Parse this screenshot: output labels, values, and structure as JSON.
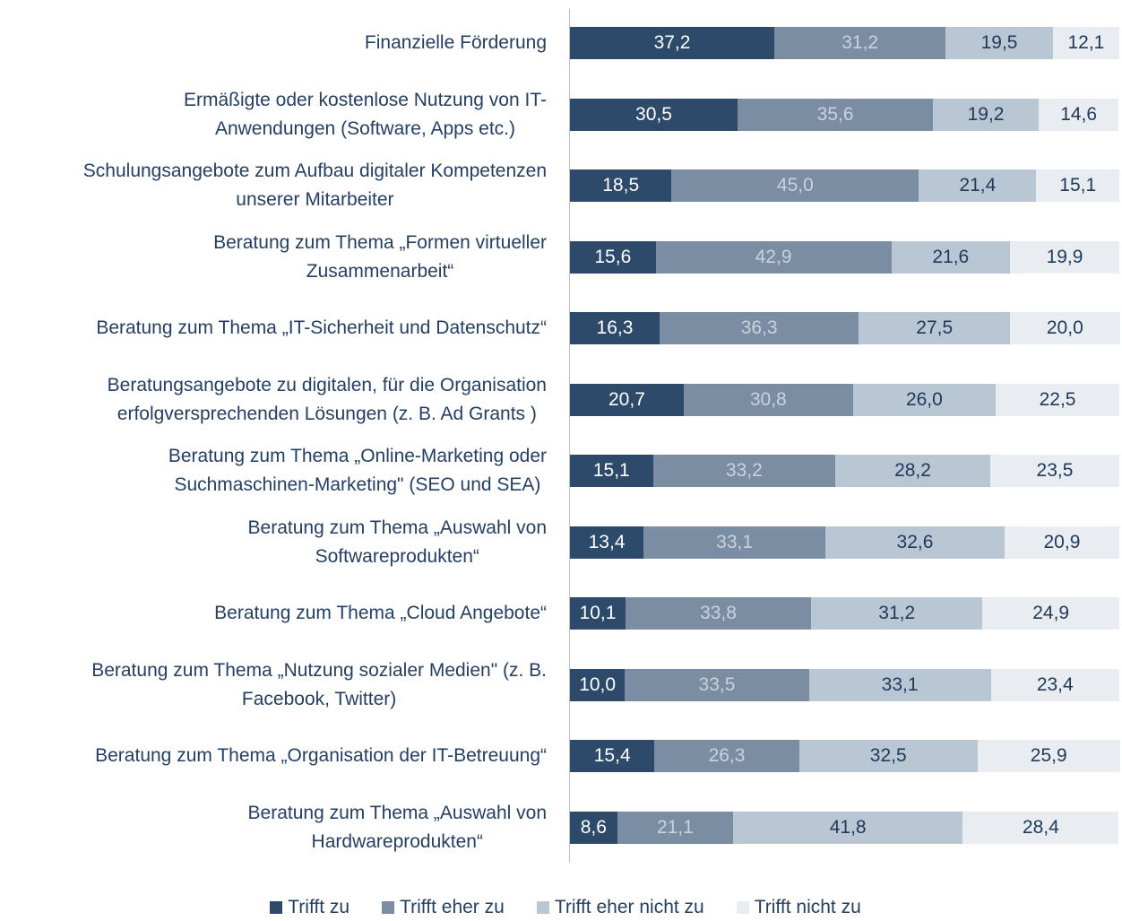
{
  "chart_data": {
    "type": "stacked_bar_horizontal",
    "categories": [
      "Finanzielle Förderung",
      "Ermäßigte oder kostenlose Nutzung von IT-\nAnwendungen (Software, Apps etc.)",
      "Schulungsangebote zum Aufbau digitaler Kompetenzen\nunserer Mitarbeiter",
      "Beratung zum Thema „Formen virtueller\nZusammenarbeit“",
      "Beratung zum Thema „IT-Sicherheit und Datenschutz“",
      "Beratungsangebote zu digitalen, für die Organisation\nerfolgversprechenden Lösungen (z. B. Ad Grants )",
      "Beratung zum Thema „Online-Marketing oder\nSuchmaschinen-Marketing\" (SEO und SEA)",
      "Beratung zum Thema „Auswahl von\nSoftwareprodukten“",
      "Beratung zum Thema „Cloud Angebote“",
      "Beratung zum Thema „Nutzung sozialer Medien\" (z. B.\nFacebook, Twitter)",
      "Beratung zum Thema „Organisation der IT-Betreuung“",
      "Beratung zum Thema „Auswahl von\nHardwareprodukten“"
    ],
    "xlim": [
      0,
      100
    ],
    "legend": "bottom",
    "series": [
      {
        "name": "Trifft zu",
        "color": "#2d4a6a",
        "label_color": "#ffffff",
        "values": [
          37.2,
          30.5,
          18.5,
          15.6,
          16.3,
          20.7,
          15.1,
          13.4,
          10.1,
          10.0,
          15.4,
          8.6
        ],
        "value_labels": [
          "37,2",
          "30,5",
          "18,5",
          "15,6",
          "16,3",
          "20,7",
          "15,1",
          "13,4",
          "10,1",
          "10,0",
          "15,4",
          "8,6"
        ]
      },
      {
        "name": "Trifft eher zu",
        "color": "#7a8da2",
        "label_color": "#c9d3de",
        "values": [
          31.2,
          35.6,
          45.0,
          42.9,
          36.3,
          30.8,
          33.2,
          33.1,
          33.8,
          33.5,
          26.3,
          21.1
        ],
        "value_labels": [
          "31,2",
          "35,6",
          "45,0",
          "42,9",
          "36,3",
          "30,8",
          "33,2",
          "33,1",
          "33,8",
          "33,5",
          "26,3",
          "21,1"
        ]
      },
      {
        "name": "Trifft eher nicht zu",
        "color": "#b9c7d5",
        "label_color": "#203a5a",
        "values": [
          19.5,
          19.2,
          21.4,
          21.6,
          27.5,
          26.0,
          28.2,
          32.6,
          31.2,
          33.1,
          32.5,
          41.8
        ],
        "value_labels": [
          "19,5",
          "19,2",
          "21,4",
          "21,6",
          "27,5",
          "26,0",
          "28,2",
          "32,6",
          "31,2",
          "33,1",
          "32,5",
          "41,8"
        ]
      },
      {
        "name": "Trifft nicht zu",
        "color": "#e9edf2",
        "label_color": "#203a5a",
        "values": [
          12.1,
          14.6,
          15.1,
          19.9,
          20.0,
          22.5,
          23.5,
          20.9,
          24.9,
          23.4,
          25.9,
          28.4
        ],
        "value_labels": [
          "12,1",
          "14,6",
          "15,1",
          "19,9",
          "20,0",
          "22,5",
          "23,5",
          "20,9",
          "24,9",
          "23,4",
          "25,9",
          "28,4"
        ]
      }
    ]
  }
}
